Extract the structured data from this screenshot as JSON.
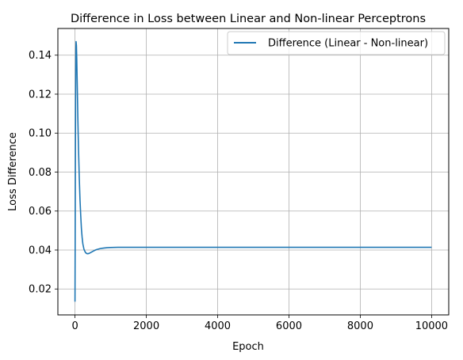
{
  "chart_data": {
    "type": "line",
    "title": "Difference in Loss between Linear and Non-linear Perceptrons",
    "xlabel": "Epoch",
    "ylabel": "Loss Difference",
    "xlim": [
      -480,
      10480
    ],
    "ylim": [
      0.0067,
      0.1537
    ],
    "xticks": [
      0,
      2000,
      4000,
      6000,
      8000,
      10000
    ],
    "xtick_labels": [
      "0",
      "2000",
      "4000",
      "6000",
      "8000",
      "10000"
    ],
    "yticks": [
      0.02,
      0.04,
      0.06,
      0.08,
      0.1,
      0.12,
      0.14
    ],
    "ytick_labels": [
      "0.02",
      "0.04",
      "0.06",
      "0.08",
      "0.10",
      "0.12",
      "0.14"
    ],
    "grid": true,
    "legend_position": "upper right",
    "series": [
      {
        "name": "Difference (Linear - Non-linear)",
        "color": "#1f77b4",
        "x": [
          0,
          5,
          10,
          15,
          20,
          25,
          30,
          40,
          50,
          60,
          70,
          80,
          90,
          100,
          120,
          140,
          160,
          180,
          200,
          220,
          250,
          280,
          300,
          330,
          360,
          400,
          450,
          500,
          550,
          600,
          700,
          800,
          900,
          1000,
          1200,
          1400,
          1600,
          1800,
          2000,
          2500,
          3000,
          4000,
          5000,
          6000,
          7000,
          8000,
          9000,
          10000
        ],
        "y": [
          0.0135,
          0.045,
          0.08,
          0.11,
          0.132,
          0.143,
          0.147,
          0.145,
          0.138,
          0.128,
          0.118,
          0.108,
          0.099,
          0.091,
          0.077,
          0.066,
          0.058,
          0.051,
          0.0465,
          0.0432,
          0.0405,
          0.0392,
          0.0386,
          0.0382,
          0.0381,
          0.0383,
          0.0388,
          0.0393,
          0.0398,
          0.0402,
          0.0407,
          0.041,
          0.0412,
          0.0413,
          0.0414,
          0.0414,
          0.0414,
          0.0414,
          0.0414,
          0.0414,
          0.0414,
          0.0414,
          0.0414,
          0.0414,
          0.0414,
          0.0414,
          0.0414,
          0.0414
        ]
      }
    ]
  }
}
